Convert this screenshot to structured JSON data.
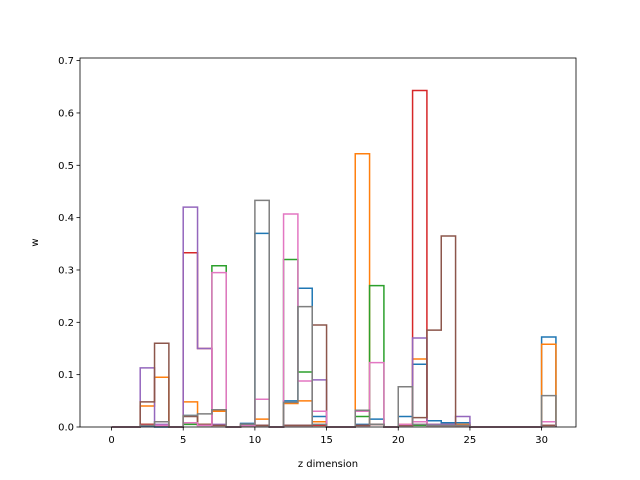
{
  "chart_data": {
    "type": "step-histogram",
    "xlabel": "z dimension",
    "ylabel": "w",
    "xlim": [
      -2.2,
      32.4
    ],
    "ylim": [
      0,
      0.705
    ],
    "xticks": [
      0,
      5,
      10,
      15,
      20,
      25,
      30
    ],
    "yticks": [
      0.0,
      0.1,
      0.2,
      0.3,
      0.4,
      0.5,
      0.6,
      0.7
    ],
    "ytick_labels": [
      "0.0",
      "0.1",
      "0.2",
      "0.3",
      "0.4",
      "0.5",
      "0.6",
      "0.7"
    ],
    "bin_edges": [
      0,
      1,
      2,
      3,
      4,
      5,
      6,
      7,
      8,
      9,
      10,
      11,
      12,
      13,
      14,
      15,
      16,
      17,
      18,
      19,
      20,
      21,
      22,
      23,
      24,
      25,
      26,
      27,
      28,
      29,
      30,
      31
    ],
    "grid": false,
    "series": [
      {
        "color": "#1f77b4",
        "values": [
          0,
          0,
          0.002,
          0,
          0,
          0.022,
          0.005,
          0.032,
          0,
          0.007,
          0.37,
          0,
          0.05,
          0.265,
          0.02,
          0,
          0,
          0.005,
          0.015,
          0,
          0.02,
          0.12,
          0.012,
          0.008,
          0.008,
          0,
          0,
          0,
          0,
          0,
          0.172
        ]
      },
      {
        "color": "#ff7f0e",
        "values": [
          0,
          0,
          0.04,
          0.095,
          0,
          0.048,
          0.005,
          0.03,
          0,
          0.005,
          0.015,
          0,
          0.045,
          0.05,
          0.01,
          0,
          0,
          0.522,
          0.005,
          0,
          0.005,
          0.13,
          0.005,
          0.005,
          0.005,
          0,
          0,
          0,
          0,
          0,
          0.158
        ]
      },
      {
        "color": "#2ca02c",
        "values": [
          0,
          0,
          0.005,
          0.003,
          0,
          0.005,
          0.003,
          0.308,
          0,
          0.003,
          0.003,
          0,
          0.32,
          0.105,
          0.003,
          0,
          0,
          0.02,
          0.27,
          0,
          0.003,
          0.003,
          0.003,
          0.003,
          0.003,
          0,
          0,
          0,
          0,
          0,
          0.003
        ]
      },
      {
        "color": "#d62728",
        "values": [
          0,
          0,
          0.005,
          0.003,
          0,
          0.333,
          0.15,
          0.003,
          0,
          0.003,
          0.003,
          0,
          0.003,
          0.003,
          0.003,
          0,
          0,
          0.003,
          0.005,
          0,
          0.003,
          0.643,
          0.003,
          0.003,
          0.003,
          0,
          0,
          0,
          0,
          0,
          0.003
        ]
      },
      {
        "color": "#9467bd",
        "values": [
          0,
          0,
          0.113,
          0.005,
          0,
          0.42,
          0.15,
          0.005,
          0,
          0.003,
          0.003,
          0,
          0.003,
          0.003,
          0.09,
          0,
          0,
          0.003,
          0.005,
          0,
          0.003,
          0.17,
          0.005,
          0.005,
          0.02,
          0,
          0,
          0,
          0,
          0,
          0.003
        ]
      },
      {
        "color": "#8c564b",
        "values": [
          0,
          0,
          0.048,
          0.16,
          0,
          0.02,
          0.005,
          0.003,
          0,
          0.003,
          0.003,
          0,
          0.003,
          0.003,
          0.195,
          0,
          0,
          0.003,
          0.005,
          0,
          0.003,
          0.018,
          0.185,
          0.365,
          0.003,
          0,
          0,
          0,
          0,
          0,
          0.003
        ]
      },
      {
        "color": "#e377c2",
        "values": [
          0,
          0,
          0.003,
          0.003,
          0,
          0.008,
          0.003,
          0.295,
          0,
          0.003,
          0.053,
          0,
          0.407,
          0.088,
          0.03,
          0,
          0,
          0.03,
          0.123,
          0,
          0.005,
          0.01,
          0.003,
          0.003,
          0.003,
          0,
          0,
          0,
          0,
          0,
          0.01
        ]
      },
      {
        "color": "#7f7f7f",
        "values": [
          0,
          0,
          0.003,
          0.01,
          0,
          0.022,
          0.025,
          0.033,
          0,
          0.005,
          0.433,
          0,
          0.047,
          0.23,
          0.005,
          0,
          0,
          0.032,
          0.005,
          0,
          0.077,
          0.005,
          0.003,
          0.003,
          0.003,
          0,
          0,
          0,
          0,
          0,
          0.06
        ]
      }
    ]
  }
}
